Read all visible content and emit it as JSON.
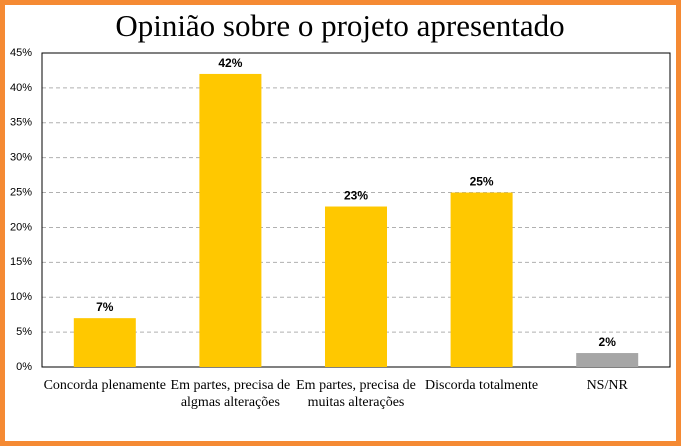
{
  "chart_data": {
    "type": "bar",
    "title": "Opinião sobre o projeto apresentado",
    "categories": [
      "Concorda plenamente",
      "Em partes, precisa de algmas alterações",
      "Em partes, precisa de muitas alterações",
      "Discorda totalmente",
      "NS/NR"
    ],
    "values": [
      7,
      42,
      23,
      25,
      2
    ],
    "value_labels": [
      "7%",
      "42%",
      "23%",
      "25%",
      "2%"
    ],
    "colors": [
      "#FFC800",
      "#FFC800",
      "#FFC800",
      "#FFC800",
      "#A6A6A6"
    ],
    "ylim": [
      0,
      45
    ],
    "yticks": [
      {
        "value": 0,
        "label": "0%"
      },
      {
        "value": 5,
        "label": "5%"
      },
      {
        "value": 10,
        "label": "10%"
      },
      {
        "value": 15,
        "label": "15%"
      },
      {
        "value": 20,
        "label": "20%"
      },
      {
        "value": 25,
        "label": "25%"
      },
      {
        "value": 30,
        "label": "30%"
      },
      {
        "value": 35,
        "label": "35%"
      },
      {
        "value": 40,
        "label": "40%"
      },
      {
        "value": 45,
        "label": "45%"
      }
    ],
    "grid": true
  }
}
